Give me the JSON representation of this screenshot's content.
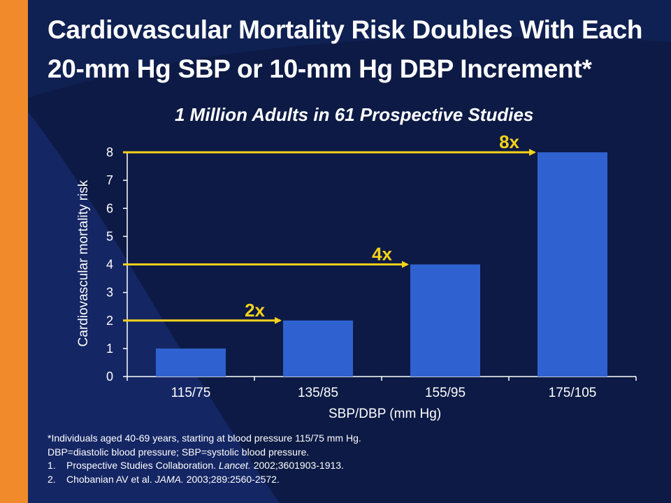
{
  "slide": {
    "title_line1": "Cardiovascular Mortality Risk Doubles With Each",
    "title_line2": "20-mm Hg SBP or 10-mm Hg DBP Increment*",
    "footnotes": {
      "line1": "*Individuals aged 40-69 years, starting at blood pressure 115/75 mm Hg.",
      "line2": "DBP=diastolic blood pressure; SBP=systolic blood pressure.",
      "ref1_num": "1.",
      "ref1_pre": "Prospective Studies Collaboration. ",
      "ref1_journal": "Lancet.",
      "ref1_post": " 2002;3601903-1913.",
      "ref2_num": "2.",
      "ref2_pre": "Chobanian AV et al. ",
      "ref2_journal": "JAMA.",
      "ref2_post": " 2003;289:2560-2572."
    },
    "colors": {
      "background": "#0c1a45",
      "orange_band": "#f08a2a",
      "bar": "#2f62d0",
      "arrow": "#f6d21a",
      "text": "#ffffff"
    }
  },
  "chart_data": {
    "type": "bar",
    "title": "1 Million Adults in 61 Prospective Studies",
    "xlabel": "SBP/DBP (mm Hg)",
    "ylabel": "Cardiovascular mortality risk",
    "categories": [
      "115/75",
      "135/85",
      "155/95",
      "175/105"
    ],
    "values": [
      1,
      2,
      4,
      8
    ],
    "ylim": [
      0,
      8
    ],
    "yticks": [
      "0",
      "1",
      "2",
      "3",
      "4",
      "5",
      "6",
      "7",
      "8"
    ],
    "grid": false,
    "annotations": [
      {
        "label": "2x",
        "y": 2,
        "category": "135/85"
      },
      {
        "label": "4x",
        "y": 4,
        "category": "155/95"
      },
      {
        "label": "8x",
        "y": 8,
        "category": "175/105"
      }
    ]
  }
}
